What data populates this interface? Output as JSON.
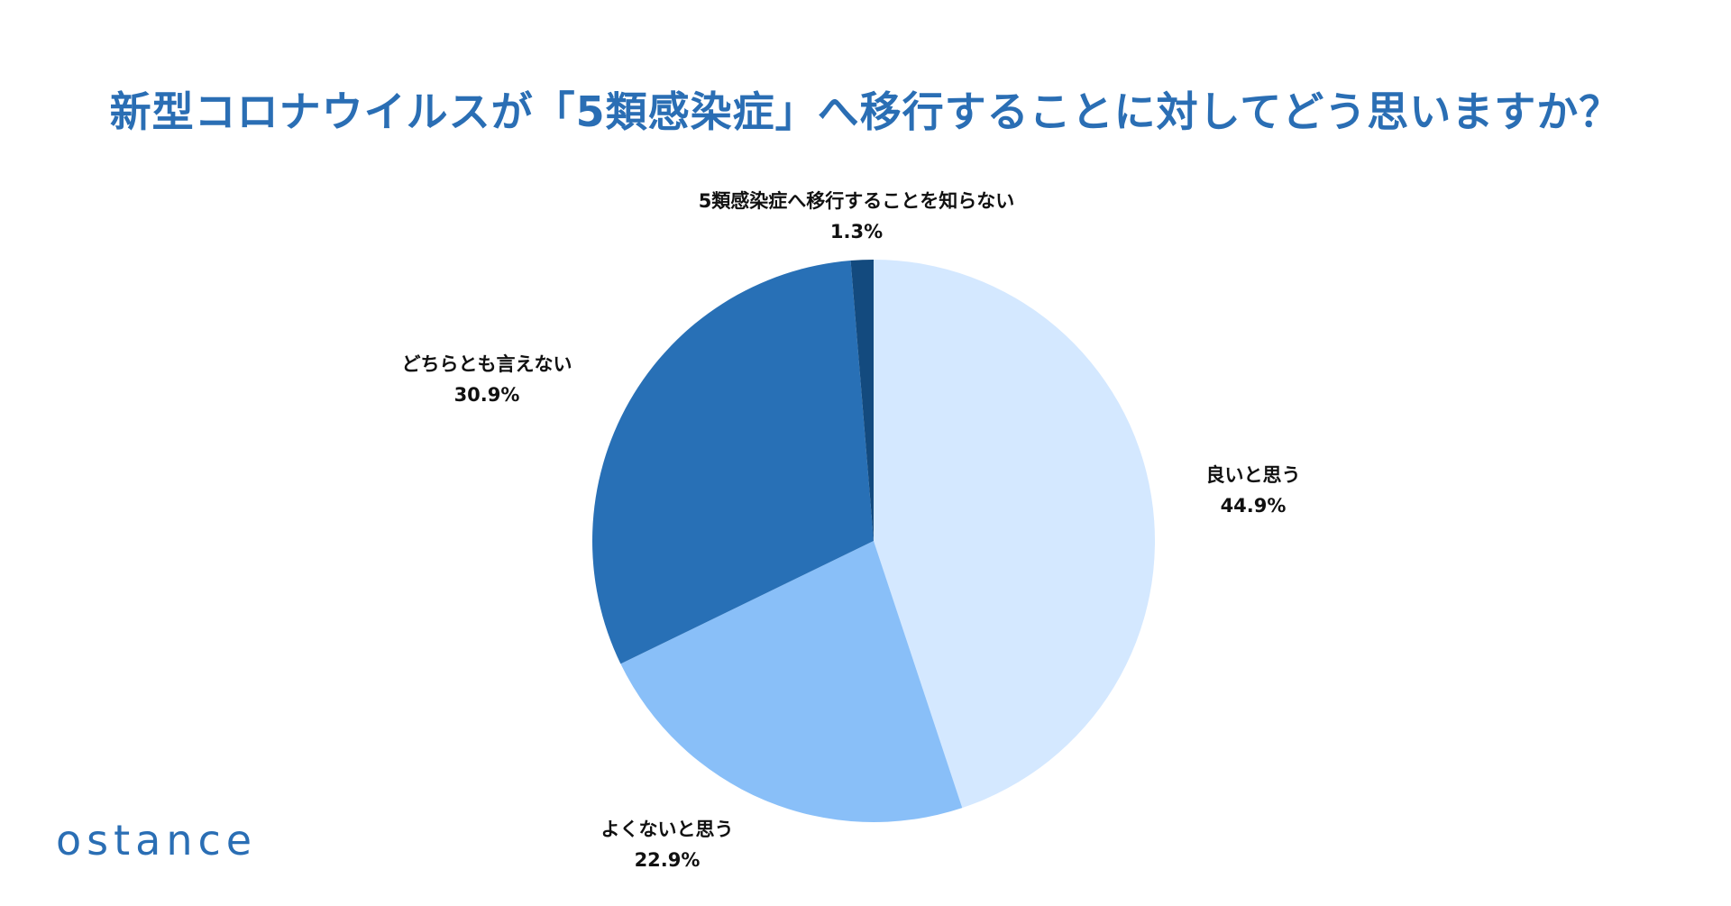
{
  "title": "新型コロナウイルスが「5類感染症」へ移行することに対してどう思いますか？",
  "logo_text": "ostance",
  "colors": {
    "title": "#2a6eb4",
    "logo": "#2a6eb4"
  },
  "chart_data": {
    "type": "pie",
    "title": "新型コロナウイルスが「5類感染症」へ移行することに対してどう思いますか？",
    "start": "12 o'clock",
    "direction": "clockwise",
    "slices": [
      {
        "label": "良いと思う",
        "value": 44.9,
        "value_label": "44.9%",
        "color": "#d4e8ff"
      },
      {
        "label": "よくないと思う",
        "value": 22.9,
        "value_label": "22.9%",
        "color": "#89bff8"
      },
      {
        "label": "どちらとも言えない",
        "value": 30.9,
        "value_label": "30.9%",
        "color": "#2870b6"
      },
      {
        "label": "5類感染症へ移行することを知らない",
        "value": 1.3,
        "value_label": "1.3%",
        "color": "#134a7e"
      }
    ]
  }
}
